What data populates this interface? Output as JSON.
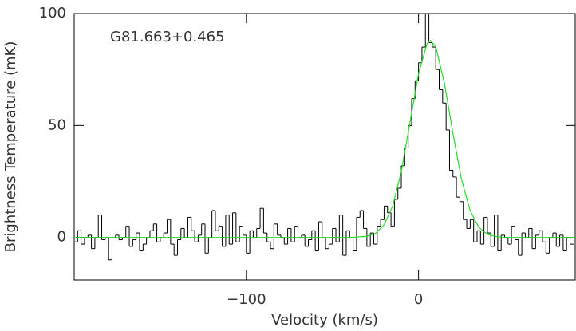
{
  "chart_data": {
    "type": "step",
    "annotation": "G81.663+0.465",
    "x_label": "Velocity (km/s)",
    "y_label": "Brightness Temperature (mK)",
    "xlim": [
      -200,
      91
    ],
    "ylim": [
      -19,
      100
    ],
    "xticks": [
      {
        "value": -100,
        "label": "−100"
      },
      0
    ],
    "yticks": [
      0,
      50,
      100
    ],
    "series": [
      {
        "kind": "step",
        "color": "#000000",
        "x": [
          -199,
          -197,
          -195,
          -193,
          -191,
          -189,
          -187,
          -185,
          -183,
          -181,
          -179,
          -177,
          -175,
          -173,
          -171,
          -169,
          -167,
          -165,
          -163,
          -161,
          -159,
          -157,
          -155,
          -153,
          -151,
          -149,
          -147,
          -145,
          -143,
          -141,
          -139,
          -137,
          -135,
          -133,
          -131,
          -129,
          -127,
          -125,
          -123,
          -121,
          -119,
          -117,
          -115,
          -113,
          -111,
          -109,
          -107,
          -105,
          -103,
          -101,
          -99,
          -97,
          -95,
          -93,
          -91,
          -89,
          -87,
          -85,
          -83,
          -81,
          -79,
          -77,
          -75,
          -73,
          -71,
          -69,
          -67,
          -65,
          -63,
          -61,
          -59,
          -57,
          -55,
          -53,
          -51,
          -49,
          -47,
          -45,
          -43,
          -41,
          -39,
          -37,
          -35,
          -33,
          -31,
          -29,
          -27,
          -25,
          -23,
          -21,
          -19,
          -17,
          -15,
          -13,
          -11,
          -9,
          -7,
          -5,
          -3,
          -1,
          1,
          3,
          5,
          7,
          9,
          11,
          13,
          15,
          17,
          19,
          21,
          23,
          25,
          27,
          29,
          31,
          33,
          35,
          37,
          39,
          41,
          43,
          45,
          47,
          49,
          51,
          53,
          55,
          57,
          59,
          61,
          63,
          65,
          67,
          69,
          71,
          73,
          75,
          77,
          79,
          81,
          83,
          85,
          87,
          89
        ],
        "values": [
          -2,
          3,
          -3,
          0,
          1,
          -5,
          0,
          10,
          -1,
          0,
          -10,
          0,
          1,
          -1,
          0,
          5,
          -4,
          -1,
          2,
          -6,
          -3,
          0,
          3,
          6,
          -2,
          0,
          2,
          8,
          -3,
          -8,
          -1,
          4,
          0,
          9,
          3,
          -2,
          1,
          6,
          -7,
          0,
          12,
          3,
          5,
          -4,
          10,
          -3,
          11,
          -2,
          5,
          1,
          -7,
          3,
          0,
          4,
          13,
          2,
          -2,
          -5,
          6,
          1,
          0,
          -3,
          4,
          -2,
          5,
          0,
          1,
          -4,
          -1,
          3,
          -6,
          7,
          0,
          -5,
          -3,
          4,
          -2,
          10,
          -8,
          3,
          0,
          -6,
          9,
          12,
          4,
          -4,
          2,
          -3,
          5,
          8,
          14,
          11,
          5,
          17,
          22,
          32,
          40,
          50,
          62,
          70,
          78,
          85,
          100,
          87,
          85,
          75,
          66,
          60,
          48,
          30,
          27,
          18,
          16,
          8,
          4,
          8,
          -2,
          3,
          -3,
          9,
          2,
          -4,
          10,
          -6,
          1,
          0,
          -3,
          5,
          -1,
          -8,
          2,
          0,
          4,
          -5,
          1,
          3,
          -2,
          -7,
          0,
          2,
          -4,
          1,
          -6,
          0,
          -3
        ]
      },
      {
        "kind": "line",
        "color": "#22dd22",
        "x": [
          -200,
          -40,
          -30,
          -25,
          -20,
          -15,
          -10,
          -5,
          0,
          5,
          7,
          10,
          15,
          20,
          25,
          30,
          35,
          40,
          45,
          50,
          91
        ],
        "values": [
          0,
          0,
          0.5,
          1.8,
          5.6,
          14.1,
          29.5,
          51.1,
          73.1,
          86.7,
          88,
          85.1,
          69.1,
          46.4,
          25.8,
          11.9,
          4.5,
          1.4,
          0.4,
          0,
          0
        ]
      }
    ]
  }
}
